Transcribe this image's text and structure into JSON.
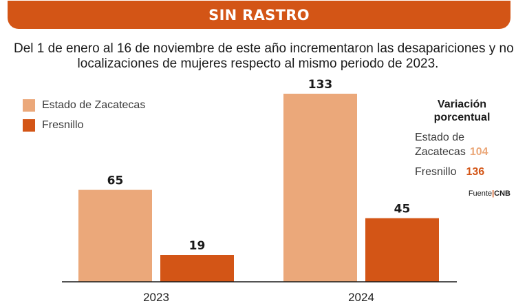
{
  "header": {
    "title": "SIN RASTRO"
  },
  "subtitle": {
    "line1": "Del 1 de enero al 16 de noviembre de este año incrementaron las desapariciones y no",
    "line2": "localizaciones de mujeres respecto al mismo periodo de 2023."
  },
  "colors": {
    "estado": "#eba87a",
    "fresnillo": "#d35516",
    "banner": "#d35516"
  },
  "legend": {
    "estado": "Estado de Zacatecas",
    "fresnillo": "Fresnillo"
  },
  "variation": {
    "title_line1": "Variación",
    "title_line2": "porcentual",
    "estado_line1": "Estado de",
    "estado_line2": "Zacatecas",
    "estado_value": "104",
    "fresnillo_label": "Fresnillo",
    "fresnillo_value": "136"
  },
  "source": {
    "label": "Fuente",
    "name": "CNB"
  },
  "chart_data": {
    "type": "bar",
    "title": "SIN RASTRO",
    "categories": [
      "2023",
      "2024"
    ],
    "series": [
      {
        "name": "Estado de Zacatecas",
        "values": [
          65,
          133
        ]
      },
      {
        "name": "Fresnillo",
        "values": [
          19,
          45
        ]
      }
    ],
    "ylim": [
      0,
      133
    ],
    "grid": false,
    "legend": "top-left"
  }
}
